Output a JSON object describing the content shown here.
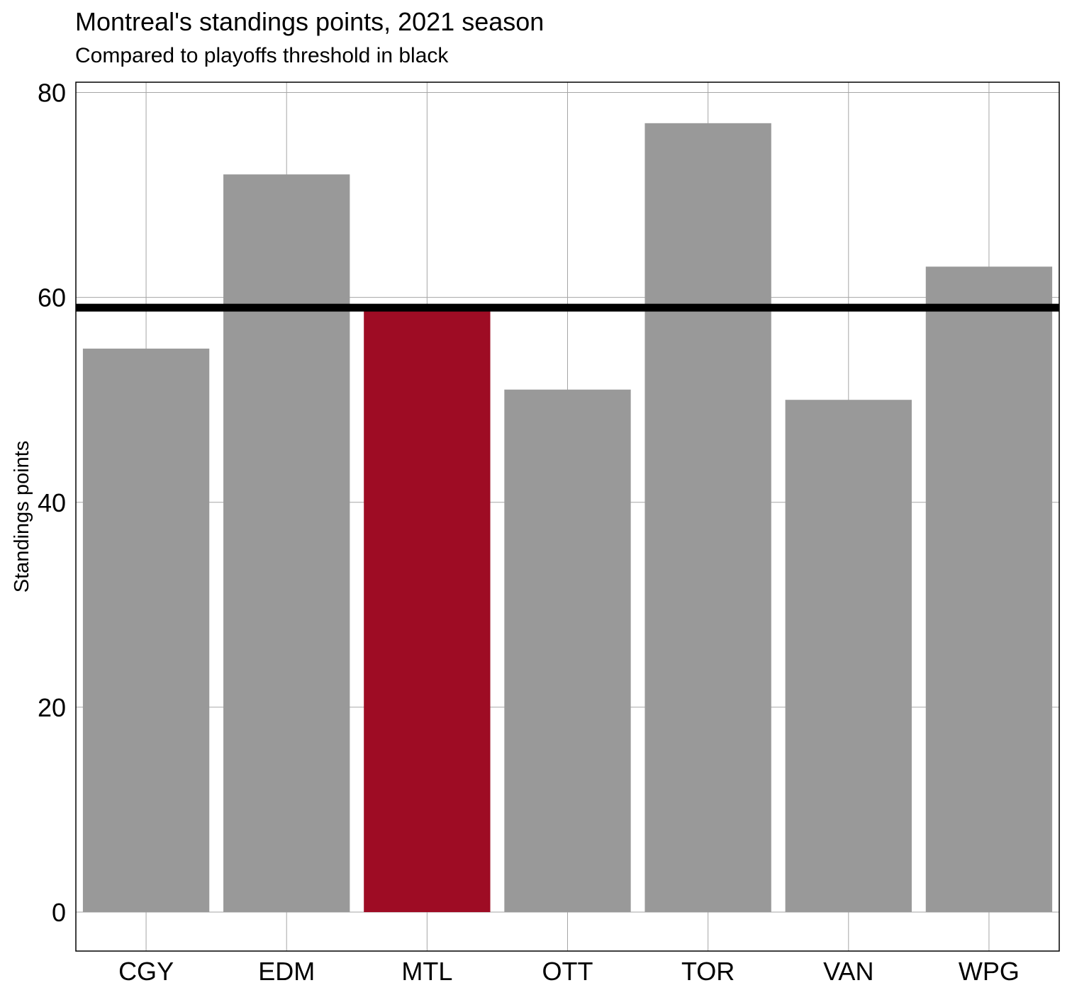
{
  "chart_data": {
    "type": "bar",
    "title": "Montreal's standings points, 2021 season",
    "subtitle": "Compared to playoffs threshold in black",
    "xlabel": "",
    "ylabel": "Standings points",
    "categories": [
      "CGY",
      "EDM",
      "MTL",
      "OTT",
      "TOR",
      "VAN",
      "WPG"
    ],
    "values": [
      55,
      72,
      59,
      51,
      77,
      50,
      63
    ],
    "highlight": "MTL",
    "threshold": 59,
    "ylim": [
      -3.8,
      81
    ],
    "yticks": [
      0,
      20,
      40,
      60,
      80
    ],
    "grid": true,
    "colors": {
      "bar": "#999999",
      "highlight": "#9e0c24",
      "threshold": "#000000",
      "grid": "#a6a6a6"
    }
  }
}
